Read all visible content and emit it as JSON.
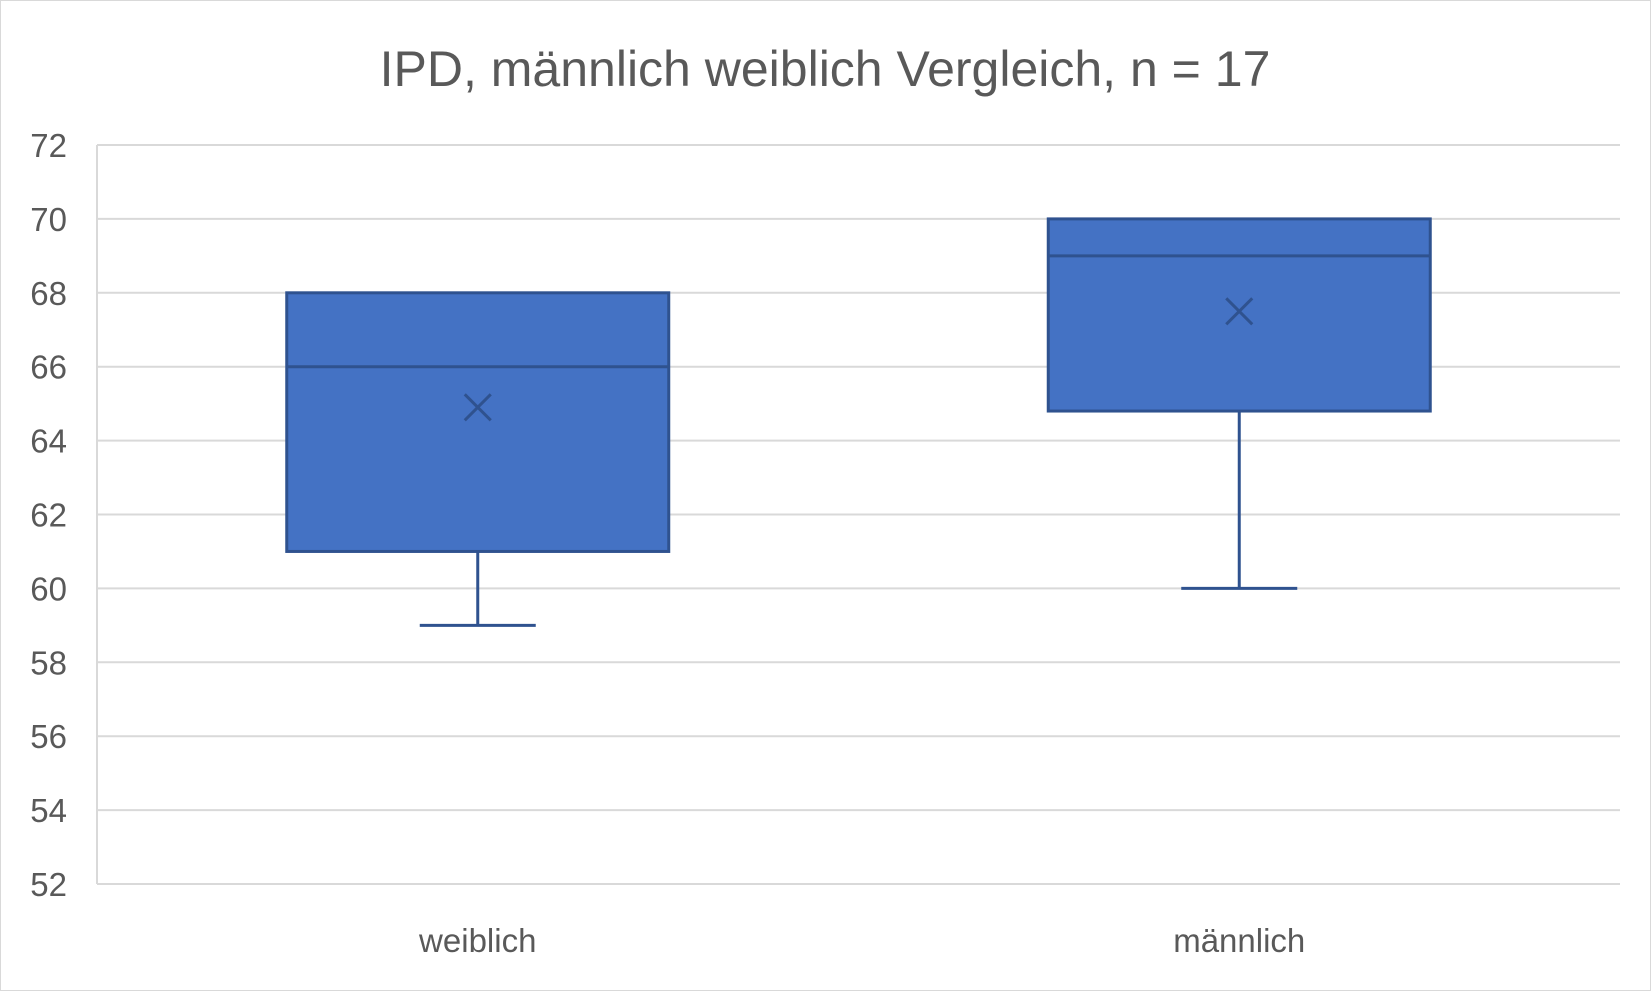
{
  "chart_data": {
    "type": "box",
    "title": "IPD, männlich weiblich Vergleich, n = 17",
    "xlabel": "",
    "ylabel": "",
    "ylim": [
      52,
      72
    ],
    "yticks": [
      "52",
      "54",
      "56",
      "58",
      "60",
      "62",
      "64",
      "66",
      "68",
      "70",
      "72"
    ],
    "grid": true,
    "legend": "none",
    "categories": [
      "weiblich",
      "männlich"
    ],
    "boxes": [
      {
        "category": "weiblich",
        "min": 59,
        "q1": 61,
        "median": 66,
        "q3": 68,
        "max": 68,
        "mean": 64.9
      },
      {
        "category": "männlich",
        "min": 60,
        "q1": 64.8,
        "median": 69,
        "q3": 70,
        "max": 70,
        "mean": 67.5
      }
    ],
    "colors": {
      "box_fill": "#4472c4",
      "box_stroke": "#2f528f",
      "grid": "#d9d9d9",
      "text": "#595959"
    }
  }
}
